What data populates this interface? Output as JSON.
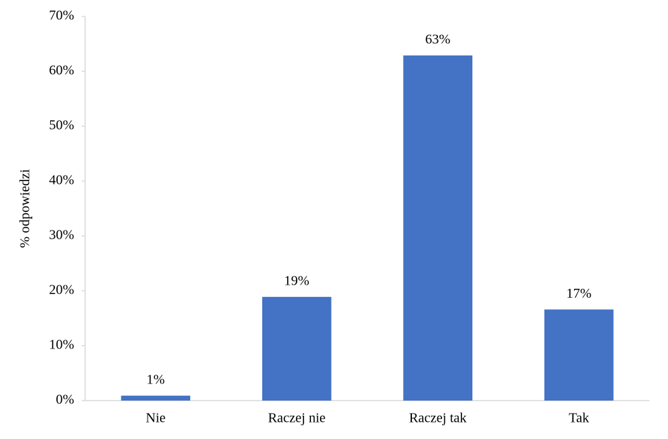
{
  "chart_data": {
    "type": "bar",
    "y_label": "% odpowiedzi",
    "categories": [
      "Nie",
      "Raczej nie",
      "Raczej tak",
      "Tak"
    ],
    "values": [
      0.9,
      18.9,
      62.9,
      16.6
    ],
    "value_labels": [
      "1%",
      "19%",
      "63%",
      "17%"
    ],
    "color": "#4472c4",
    "ylim": [
      0,
      70
    ],
    "yticks": [
      {
        "value": 0,
        "label": "0%"
      },
      {
        "value": 10,
        "label": "10%"
      },
      {
        "value": 20,
        "label": "20%"
      },
      {
        "value": 30,
        "label": "30%"
      },
      {
        "value": 40,
        "label": "40%"
      },
      {
        "value": 50,
        "label": "50%"
      },
      {
        "value": 60,
        "label": "60%"
      },
      {
        "value": 70,
        "label": "70%"
      }
    ],
    "grid": false
  }
}
